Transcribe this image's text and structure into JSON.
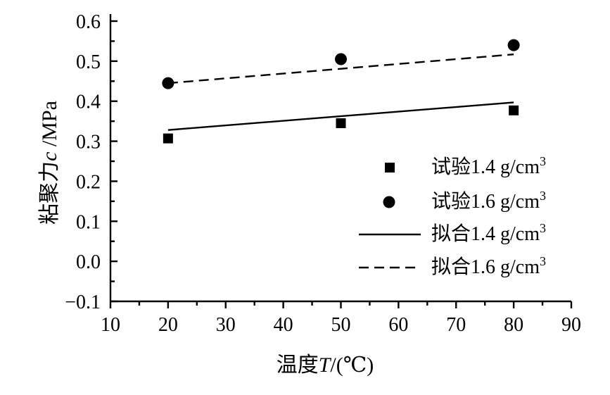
{
  "chart_data": {
    "type": "scatter",
    "xlabel": "温度T/(℃)",
    "ylabel": "粘聚力c /MPa",
    "xlim": [
      10,
      90
    ],
    "ylim": [
      -0.1,
      0.6
    ],
    "x_ticks": [
      "10",
      "20",
      "30",
      "40",
      "50",
      "60",
      "70",
      "80",
      "90"
    ],
    "y_ticks": [
      "−0.1",
      "0.0",
      "0.1",
      "0.2",
      "0.3",
      "0.4",
      "0.5",
      "0.6"
    ],
    "grid": false,
    "legend_position": "bottom-right",
    "series": [
      {
        "name": "试验1.4 g/cm3",
        "kind": "scatter",
        "marker": "square",
        "x": [
          20,
          50,
          80
        ],
        "y": [
          0.307,
          0.345,
          0.377
        ]
      },
      {
        "name": "试验1.6 g/cm3",
        "kind": "scatter",
        "marker": "circle",
        "x": [
          20,
          50,
          80
        ],
        "y": [
          0.445,
          0.505,
          0.54
        ]
      },
      {
        "name": "拟合1.4 g/cm3",
        "kind": "line",
        "style": "solid",
        "x": [
          20,
          80
        ],
        "y": [
          0.328,
          0.397
        ]
      },
      {
        "name": "拟合1.6 g/cm3",
        "kind": "line",
        "style": "dashed",
        "x": [
          20,
          80
        ],
        "y": [
          0.445,
          0.517
        ]
      }
    ]
  }
}
